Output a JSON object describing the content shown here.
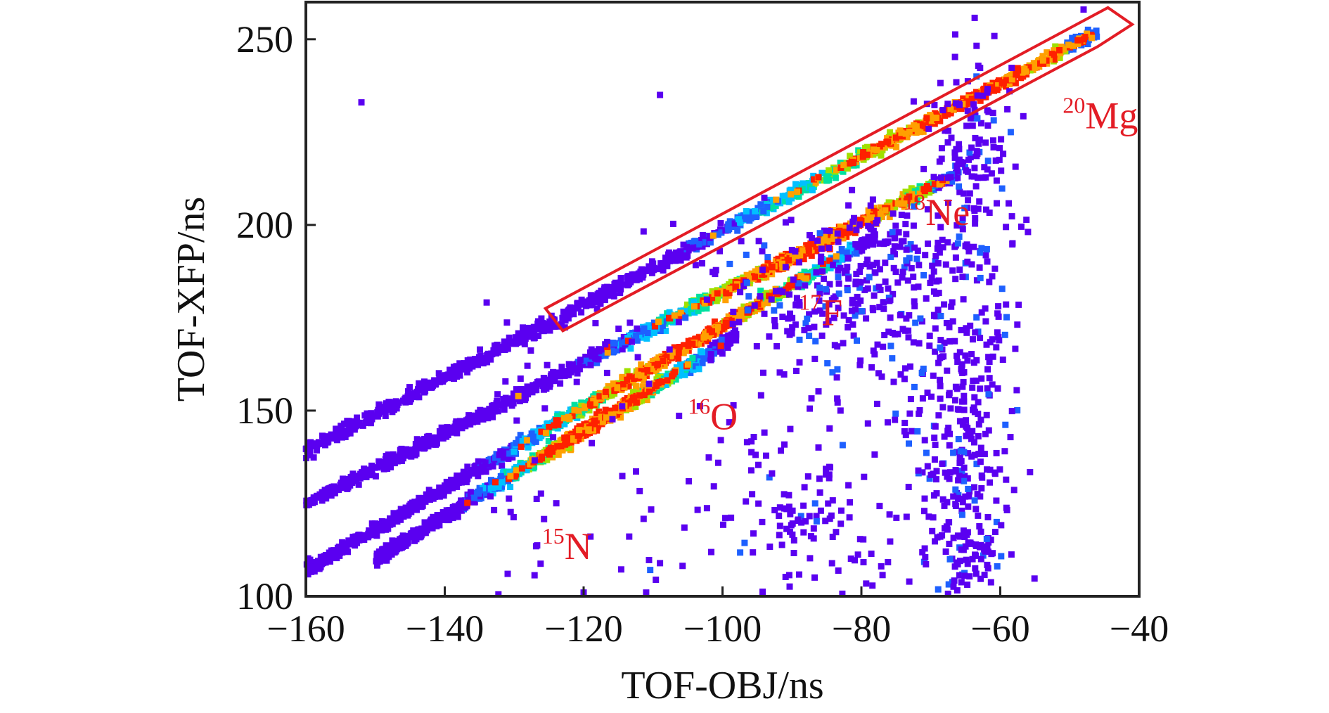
{
  "chart_data": {
    "type": "scatter",
    "title": "",
    "xlabel": "TOF-OBJ/ns",
    "ylabel": "TOF-XFP/ns",
    "xlim": [
      -160,
      -40
    ],
    "ylim": [
      100,
      260
    ],
    "xticks": [
      -160,
      -140,
      -120,
      -100,
      -80,
      -60,
      -40
    ],
    "yticks": [
      100,
      150,
      200,
      250
    ],
    "grid": false,
    "legend": "none",
    "colormap": [
      "#5a00f0",
      "#1e60ff",
      "#00c0ff",
      "#00e0a0",
      "#a0e000",
      "#ffa000",
      "#ff2000"
    ],
    "series": [
      {
        "x_range": [
          -160,
          -46
        ],
        "y_at_ends": [
          139,
          252
        ],
        "density_peak_x": -64,
        "peak_color": "#ff3000"
      },
      {
        "x_range": [
          -160,
          -66
        ],
        "y_at_ends": [
          125,
          214
        ],
        "density_peak_x": -86,
        "peak_color": "#ff8000"
      },
      {
        "x_range": [
          -160,
          -78
        ],
        "y_at_ends": [
          107,
          197
        ],
        "density_peak_x": -105,
        "peak_color": "#a8e000"
      },
      {
        "x_range": [
          -150,
          -98
        ],
        "y_at_ends": [
          110,
          170
        ],
        "density_peak_x": -118,
        "peak_color": "#70e040"
      }
    ],
    "annotations": [
      {
        "mass": "20",
        "symbol": "Mg",
        "x": -51,
        "y": 226,
        "color": "#e31c25"
      },
      {
        "mass": "18",
        "symbol": "Ne",
        "x": -74,
        "y": 200,
        "color": "#e31c25"
      },
      {
        "mass": "17",
        "symbol": "F",
        "x": -89,
        "y": 173,
        "color": "#e31c25"
      },
      {
        "mass": "16",
        "symbol": "O",
        "x": -105,
        "y": 145,
        "color": "#e31c25"
      },
      {
        "mass": "15",
        "symbol": "N",
        "x": -126,
        "y": 110,
        "color": "#e31c25"
      }
    ],
    "gate": {
      "color": "#e31c25",
      "vertices": [
        [
          -125.5,
          177.5
        ],
        [
          -44.5,
          258.5
        ],
        [
          -41,
          254
        ],
        [
          -46,
          248
        ],
        [
          -123,
          171.5
        ]
      ]
    }
  }
}
